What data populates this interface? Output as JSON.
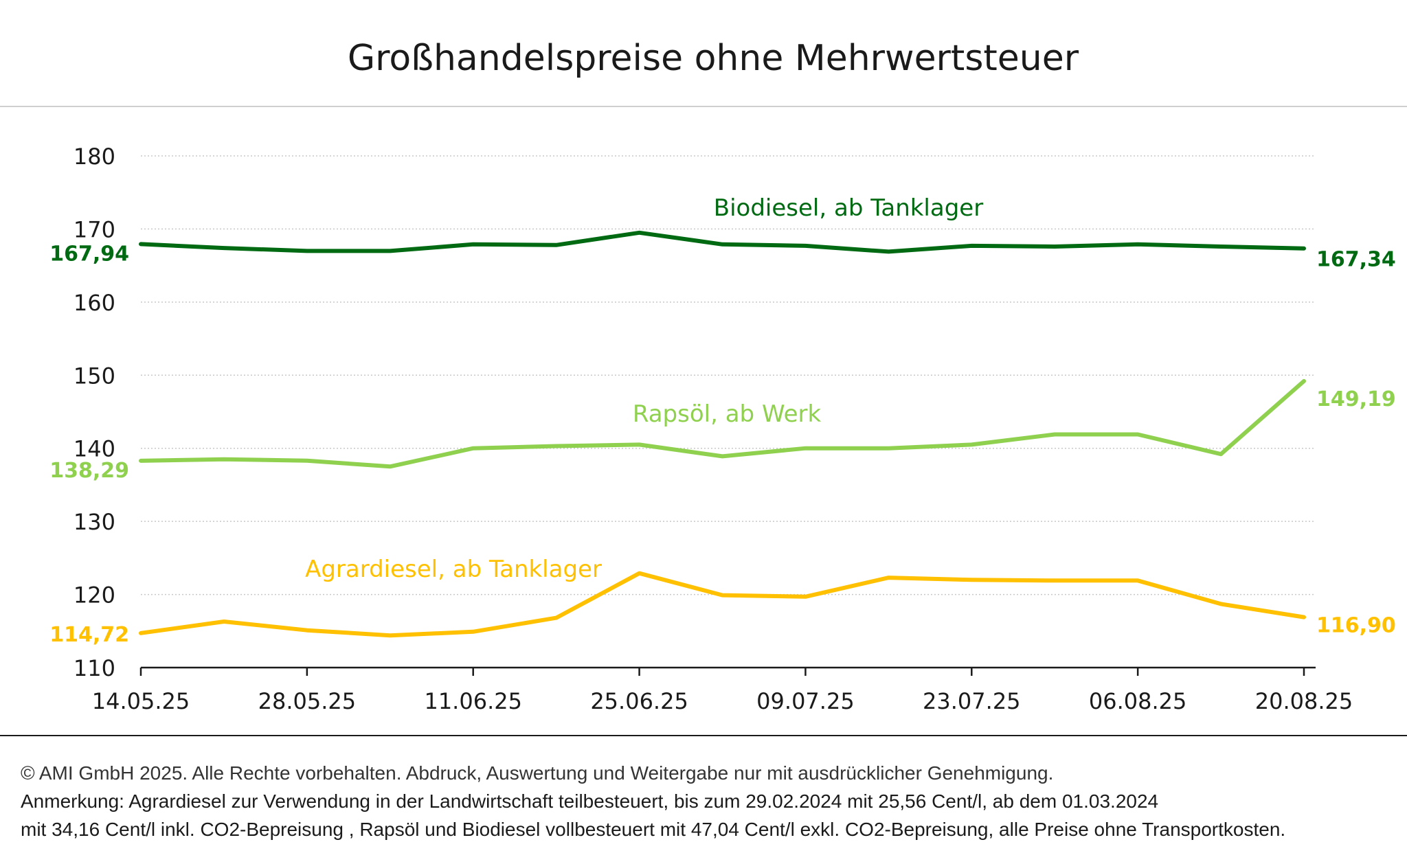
{
  "chart_data": {
    "type": "line",
    "title": "Großhandelspreise ohne Mehrwertsteuer",
    "xlabel": "",
    "ylabel": "",
    "x": [
      "14.05.25",
      "21.05.25",
      "28.05.25",
      "04.06.25",
      "11.06.25",
      "18.06.25",
      "25.06.25",
      "02.07.25",
      "09.07.25",
      "16.07.25",
      "23.07.25",
      "30.07.25",
      "06.08.25",
      "13.08.25",
      "20.08.25"
    ],
    "x_tick_labels": [
      "14.05.25",
      "28.05.25",
      "11.06.25",
      "25.06.25",
      "09.07.25",
      "23.07.25",
      "06.08.25",
      "20.08.25"
    ],
    "ylim": [
      110,
      180
    ],
    "y_ticks": [
      110,
      120,
      130,
      140,
      150,
      160,
      170,
      180
    ],
    "grid": true,
    "series": [
      {
        "name": "Biodiesel, ab Tanklager",
        "color": "#006a12",
        "values": [
          167.94,
          167.4,
          167.0,
          167.0,
          167.9,
          167.8,
          169.5,
          167.9,
          167.7,
          166.9,
          167.7,
          167.6,
          167.9,
          167.6,
          167.34
        ],
        "start_label": "167,94",
        "end_label": "167,34"
      },
      {
        "name": "Rapsöl, ab Werk",
        "color": "#8fd14f",
        "values": [
          138.29,
          138.5,
          138.3,
          137.5,
          140.0,
          140.3,
          140.5,
          138.9,
          140.0,
          140.0,
          140.5,
          141.9,
          141.9,
          139.2,
          149.19
        ],
        "start_label": "138,29",
        "end_label": "149,19"
      },
      {
        "name": "Agrardiesel, ab Tanklager",
        "color": "#ffc000",
        "values": [
          114.72,
          116.3,
          115.1,
          114.4,
          114.9,
          116.8,
          122.9,
          119.9,
          119.7,
          122.3,
          122.0,
          121.9,
          121.9,
          118.7,
          116.9
        ],
        "start_label": "114,72",
        "end_label": "116,90"
      }
    ]
  },
  "footer": {
    "copyright": "© AMI GmbH 2025.  Alle Rechte vorbehalten.  Abdruck, Auswertung und Weitergabe nur mit ausdrücklicher Genehmigung.",
    "note_line1": "Anmerkung: Agrardiesel zur Verwendung in der Landwirtschaft teilbesteuert, bis zum 29.02.2024 mit 25,56 Cent/l, ab dem 01.03.2024",
    "note_line2": "mit 34,16 Cent/l inkl. CO2-Bepreisung , Rapsöl und Biodiesel vollbesteuert mit 47,04 Cent/l exkl. CO2-Bepreisung, alle Preise ohne Transportkosten."
  }
}
